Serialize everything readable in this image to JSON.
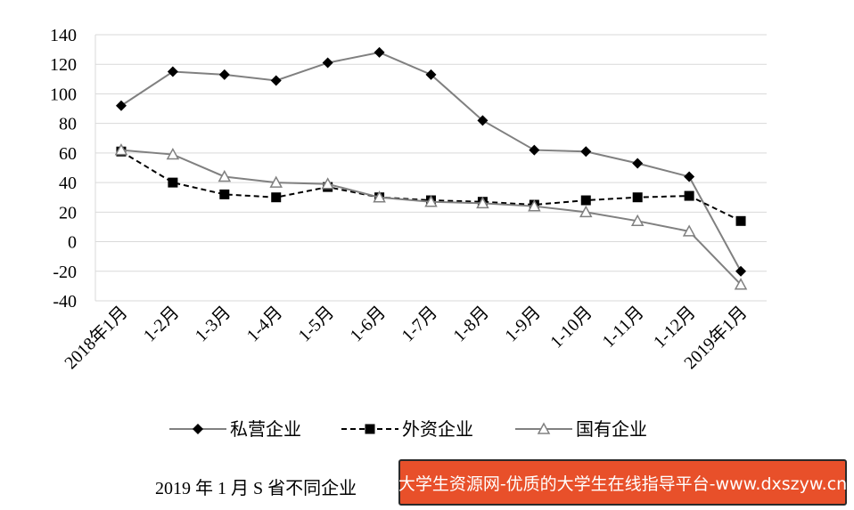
{
  "chart_data": {
    "type": "line",
    "categories": [
      "2018年1月",
      "1-2月",
      "1-3月",
      "1-4月",
      "1-5月",
      "1-6月",
      "1-7月",
      "1-8月",
      "1-9月",
      "1-10月",
      "1-11月",
      "1-12月",
      "2019年1月"
    ],
    "series": [
      {
        "name": "私营企业",
        "values": [
          92,
          115,
          113,
          109,
          121,
          128,
          113,
          82,
          62,
          61,
          53,
          44,
          -20
        ],
        "color": "#808080",
        "marker": "diamond",
        "marker_color": "#000000",
        "dash": "solid"
      },
      {
        "name": "外资企业",
        "values": [
          61,
          40,
          32,
          30,
          37,
          30,
          28,
          27,
          25,
          28,
          30,
          31,
          14
        ],
        "color": "#000000",
        "marker": "square",
        "marker_color": "#000000",
        "dash": "dashed"
      },
      {
        "name": "国有企业",
        "values": [
          62,
          59,
          44,
          40,
          39,
          30,
          27,
          26,
          24,
          20,
          14,
          7,
          -29
        ],
        "color": "#808080",
        "marker": "triangle",
        "marker_color": "#808080",
        "dash": "solid"
      }
    ],
    "ylim": [
      -40,
      140
    ],
    "yticks": [
      -40,
      -20,
      0,
      20,
      40,
      60,
      80,
      100,
      120,
      140
    ],
    "grid": true,
    "legend_position": "bottom"
  },
  "caption": "2019 年 1 月 S 省不同企业",
  "watermark": "大学生资源网-优质的大学生在线指导平台-www.dxszyw.cn"
}
